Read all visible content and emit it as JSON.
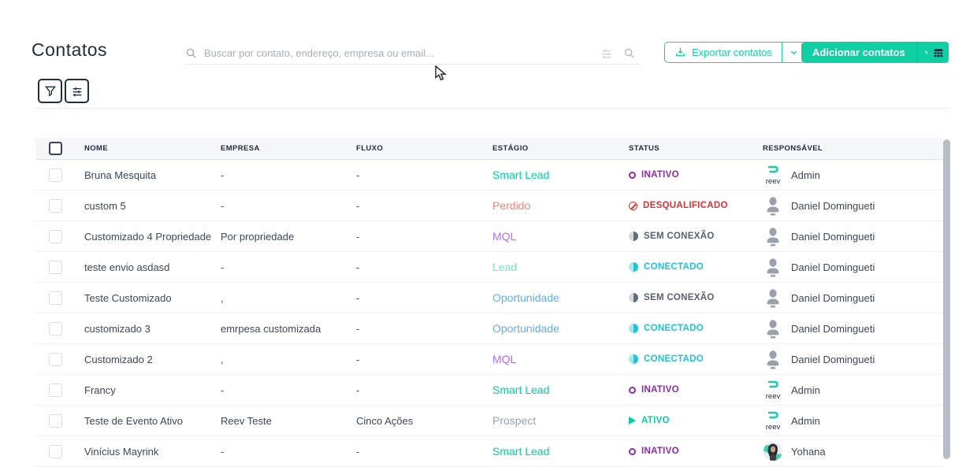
{
  "page": {
    "title": "Contatos"
  },
  "search": {
    "placeholder": "Buscar por contato, endereço, empresa ou email..."
  },
  "toolbar": {
    "export_label": "Exportar contatos",
    "add_label": "Adicionar contatos"
  },
  "colors": {
    "accent": "#0fd0a4",
    "status": {
      "inativo": "#8e2bad",
      "desqualificado": "#d63434",
      "sem-conexao": "#58606e",
      "conectado": "#1fc4d9",
      "ativo": "#00cfa5"
    }
  },
  "table": {
    "headers": [
      "NOME",
      "EMPRESA",
      "FLUXO",
      "ESTÁGIO",
      "STATUS",
      "RESPONSÁVEL"
    ],
    "rows": [
      {
        "nome": "Bruna Mesquita",
        "empresa": "-",
        "fluxo": "-",
        "estagio": "Smart Lead",
        "estagio_color": "#00cfa5",
        "status": "INATIVO",
        "status_type": "inativo",
        "responsavel": "Admin",
        "avatar": "reev"
      },
      {
        "nome": "custom 5",
        "empresa": "-",
        "fluxo": "-",
        "estagio": "Perdido",
        "estagio_color": "#ef8672",
        "status": "DESQUALIFICADO",
        "status_type": "desqualificado",
        "responsavel": "Daniel Domingueti",
        "avatar": "person"
      },
      {
        "nome": "Customizado 4 Propriedade",
        "empresa": "Por propriedade",
        "fluxo": "-",
        "estagio": "MQL",
        "estagio_color": "#b470e2",
        "status": "SEM CONEXÃO",
        "status_type": "sem-conexao",
        "responsavel": "Daniel Domingueti",
        "avatar": "person"
      },
      {
        "nome": "teste envio asdasd",
        "empresa": "-",
        "fluxo": "-",
        "estagio": "Lead",
        "estagio_color": "#7adec6",
        "status": "CONECTADO",
        "status_type": "conectado",
        "responsavel": "Daniel Domingueti",
        "avatar": "person"
      },
      {
        "nome": "Teste Customizado",
        "empresa": ",",
        "fluxo": "-",
        "estagio": "Oportunidade",
        "estagio_color": "#64aee2",
        "status": "SEM CONEXÃO",
        "status_type": "sem-conexao",
        "responsavel": "Daniel Domingueti",
        "avatar": "person"
      },
      {
        "nome": "customizado 3",
        "empresa": "emrpesa customizada",
        "fluxo": "-",
        "estagio": "Oportunidade",
        "estagio_color": "#64aee2",
        "status": "CONECTADO",
        "status_type": "conectado",
        "responsavel": "Daniel Domingueti",
        "avatar": "person"
      },
      {
        "nome": "Customizado 2",
        "empresa": ",",
        "fluxo": "-",
        "estagio": "MQL",
        "estagio_color": "#b470e2",
        "status": "CONECTADO",
        "status_type": "conectado",
        "responsavel": "Daniel Domingueti",
        "avatar": "person"
      },
      {
        "nome": "Francy",
        "empresa": "-",
        "fluxo": "-",
        "estagio": "Smart Lead",
        "estagio_color": "#00cfa5",
        "status": "INATIVO",
        "status_type": "inativo",
        "responsavel": "Admin",
        "avatar": "reev"
      },
      {
        "nome": "Teste de Evento Ativo",
        "empresa": "Reev Teste",
        "fluxo": "Cinco Ações",
        "estagio": "Prospect",
        "estagio_color": "#9aa3b2",
        "status": "ATIVO",
        "status_type": "ativo",
        "responsavel": "Admin",
        "avatar": "reev"
      },
      {
        "nome": "Vinícius Mayrink",
        "empresa": "-",
        "fluxo": "-",
        "estagio": "Smart Lead",
        "estagio_color": "#00cfa5",
        "status": "INATIVO",
        "status_type": "inativo",
        "responsavel": "Yohana",
        "avatar": "yohana"
      }
    ]
  }
}
